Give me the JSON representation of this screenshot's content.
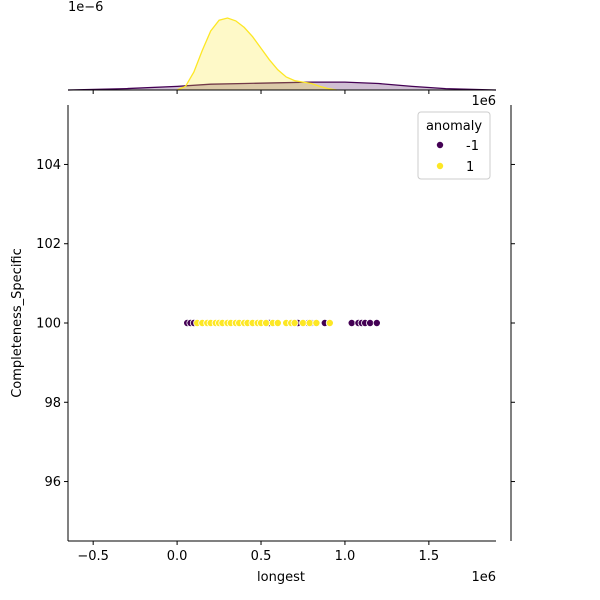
{
  "chart_data": {
    "type": "scatter",
    "title": "",
    "xlabel": "longest",
    "ylabel": "Completeness_Specific",
    "x_offset_label": "1e6",
    "y_offset_label": "1e6",
    "marginal_offset_label": "1e−6",
    "xlim": [
      -0.65,
      1.9
    ],
    "ylim": [
      94.5,
      105.5
    ],
    "x_ticks": [
      -0.5,
      0.0,
      0.5,
      1.0,
      1.5
    ],
    "x_tick_labels": [
      "−0.5",
      "0.0",
      "0.5",
      "1.0",
      "1.5"
    ],
    "y_ticks": [
      96,
      98,
      100,
      102,
      104
    ],
    "y_tick_labels": [
      "96",
      "98",
      "100",
      "102",
      "104"
    ],
    "grid": false,
    "legend": {
      "title": "anomaly",
      "placement": "top-right"
    },
    "series": [
      {
        "name": "-1",
        "color": "#440154",
        "x": [
          0.06,
          0.08,
          0.1,
          0.55,
          0.72,
          0.78,
          0.8,
          0.88,
          1.04,
          1.08,
          1.1,
          1.12,
          1.15,
          1.19
        ],
        "y": [
          100,
          100,
          100,
          100,
          100,
          100,
          100,
          100,
          100,
          100,
          100,
          100,
          100,
          100
        ],
        "kde": [
          [
            -0.65,
            0.0
          ],
          [
            -0.3,
            0.02
          ],
          [
            0.0,
            0.05
          ],
          [
            0.2,
            0.08
          ],
          [
            0.4,
            0.09
          ],
          [
            0.6,
            0.1
          ],
          [
            0.8,
            0.11
          ],
          [
            1.0,
            0.11
          ],
          [
            1.2,
            0.09
          ],
          [
            1.4,
            0.05
          ],
          [
            1.6,
            0.02
          ],
          [
            1.9,
            0.0
          ]
        ]
      },
      {
        "name": "1",
        "color": "#fde725",
        "x": [
          0.12,
          0.15,
          0.18,
          0.2,
          0.23,
          0.25,
          0.27,
          0.3,
          0.32,
          0.35,
          0.37,
          0.4,
          0.42,
          0.45,
          0.48,
          0.5,
          0.53,
          0.57,
          0.6,
          0.65,
          0.68,
          0.7,
          0.75,
          0.79,
          0.83,
          0.91
        ],
        "y": [
          100,
          100,
          100,
          100,
          100,
          100,
          100,
          100,
          100,
          100,
          100,
          100,
          100,
          100,
          100,
          100,
          100,
          100,
          100,
          100,
          100,
          100,
          100,
          100,
          100,
          100
        ],
        "kde": [
          [
            0.0,
            0.0
          ],
          [
            0.05,
            0.05
          ],
          [
            0.1,
            0.25
          ],
          [
            0.15,
            0.55
          ],
          [
            0.2,
            0.82
          ],
          [
            0.25,
            0.97
          ],
          [
            0.3,
            1.0
          ],
          [
            0.35,
            0.96
          ],
          [
            0.4,
            0.87
          ],
          [
            0.45,
            0.74
          ],
          [
            0.5,
            0.58
          ],
          [
            0.55,
            0.42
          ],
          [
            0.6,
            0.28
          ],
          [
            0.65,
            0.18
          ],
          [
            0.7,
            0.13
          ],
          [
            0.75,
            0.11
          ],
          [
            0.8,
            0.09
          ],
          [
            0.85,
            0.05
          ],
          [
            0.9,
            0.02
          ],
          [
            0.95,
            0.0
          ]
        ]
      }
    ]
  }
}
